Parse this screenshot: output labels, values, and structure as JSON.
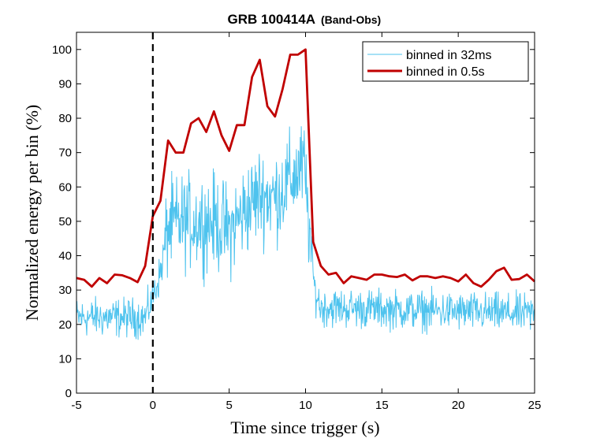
{
  "chart_data": {
    "type": "line",
    "title": "GRB 100414A",
    "subtitle": "(Band-Obs)",
    "xlabel": "Time since trigger (s)",
    "ylabel": "Normalized energy per bin (%)",
    "xlim": [
      -5,
      25
    ],
    "ylim": [
      0,
      105
    ],
    "x_ticks": [
      -5,
      0,
      5,
      10,
      15,
      20,
      25
    ],
    "y_ticks": [
      0,
      10,
      20,
      30,
      40,
      50,
      60,
      70,
      80,
      90,
      100
    ],
    "grid": false,
    "legend_position": "top-right",
    "trigger_marker": {
      "x": 0,
      "style": "dashed",
      "color": "#000000"
    },
    "series": [
      {
        "name": "binned in 32ms",
        "color": "#4ec3ee",
        "bin_width_s": 0.032,
        "envelope": [
          {
            "x": -5.0,
            "y": 22
          },
          {
            "x": -0.5,
            "y": 22
          },
          {
            "x": 0.0,
            "y": 28
          },
          {
            "x": 0.5,
            "y": 35
          },
          {
            "x": 1.0,
            "y": 48
          },
          {
            "x": 2.0,
            "y": 50
          },
          {
            "x": 3.0,
            "y": 50
          },
          {
            "x": 4.0,
            "y": 50
          },
          {
            "x": 5.0,
            "y": 47
          },
          {
            "x": 6.0,
            "y": 53
          },
          {
            "x": 7.0,
            "y": 58
          },
          {
            "x": 8.0,
            "y": 57
          },
          {
            "x": 9.0,
            "y": 62
          },
          {
            "x": 9.9,
            "y": 66
          },
          {
            "x": 10.3,
            "y": 45
          },
          {
            "x": 10.6,
            "y": 30
          },
          {
            "x": 11.0,
            "y": 25
          },
          {
            "x": 25.0,
            "y": 23
          }
        ],
        "noise_amplitude": 3.5
      },
      {
        "name": "binned in 0.5s",
        "color": "#c00000",
        "x": [
          -5,
          -4.5,
          -4,
          -3.5,
          -3,
          -2.5,
          -2,
          -1.5,
          -1,
          -0.5,
          0,
          0.5,
          1,
          1.5,
          2,
          2.5,
          3,
          3.5,
          4,
          4.5,
          5,
          5.5,
          6,
          6.5,
          7,
          7.5,
          8,
          8.5,
          9,
          9.5,
          10,
          10.5,
          11,
          11.5,
          12,
          12.5,
          13,
          13.5,
          14,
          14.5,
          15,
          15.5,
          16,
          16.5,
          17,
          17.5,
          18,
          18.5,
          19,
          19.5,
          20,
          20.5,
          21,
          21.5,
          22,
          22.5,
          23,
          23.5,
          24,
          24.5,
          25
        ],
        "y": [
          33.5,
          33,
          31,
          33.5,
          32,
          34.5,
          34.3,
          33.5,
          32.3,
          37,
          51.5,
          56,
          73.5,
          70,
          70,
          78.5,
          80,
          76,
          82,
          75,
          70.5,
          78,
          78,
          92,
          97,
          83.5,
          80.5,
          88.5,
          98.5,
          98.5,
          100,
          44,
          37,
          34.5,
          35,
          32,
          34,
          33.5,
          33,
          34.5,
          34.5,
          34,
          33.8,
          34.5,
          32.8,
          34,
          34,
          33.5,
          34,
          33.5,
          32.5,
          34.5,
          32,
          31,
          33,
          35.5,
          36.5,
          33,
          33.2,
          34.5,
          32.5
        ]
      }
    ]
  }
}
